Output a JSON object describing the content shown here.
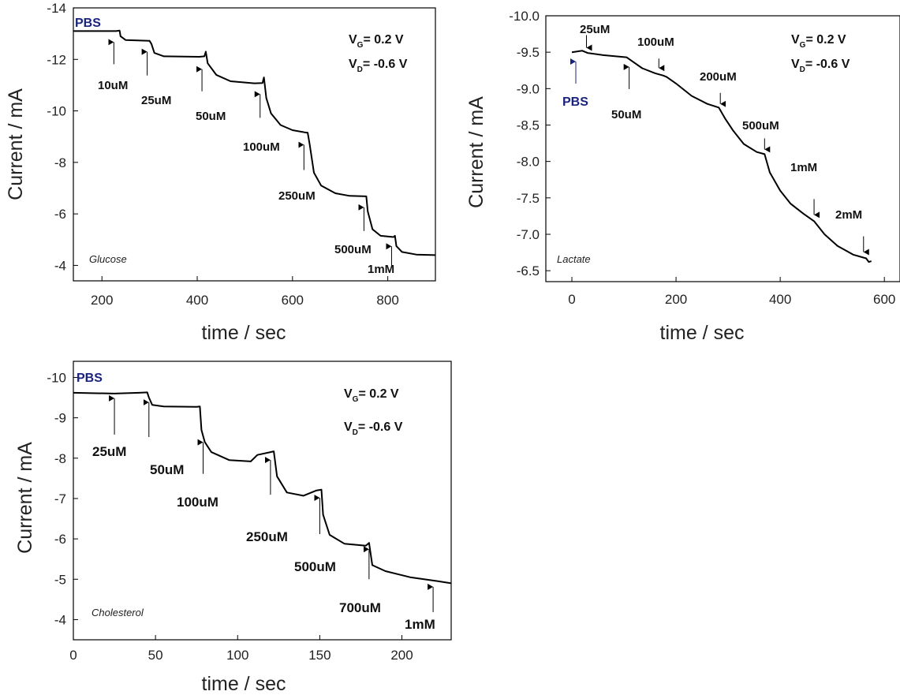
{
  "chart_data": [
    {
      "type": "line",
      "xlabel": "time / sec",
      "ylabel": "Current / mA",
      "xlim": [
        140,
        900
      ],
      "ylim": [
        -14,
        -3.4
      ],
      "y_reversed": true,
      "xticks": [
        200,
        400,
        600,
        800
      ],
      "yticks": [
        -14,
        -12,
        -10,
        -8,
        -6,
        -4
      ],
      "x_tick_labels": [
        "200",
        "400",
        "600",
        "800"
      ],
      "y_tick_labels": [
        "-14",
        "-12",
        "-10",
        "-8",
        "-6",
        "-4"
      ],
      "analyte": "Glucose",
      "baseline_label": "PBS",
      "vg_label": "V",
      "vg_sub": "G",
      "vg_value": "= 0.2 V",
      "vd_label": "V",
      "vd_sub": "D",
      "vd_value": "= -0.6 V",
      "grid": false,
      "series": [
        {
          "values": [
            [
              140,
              -13.1
            ],
            [
              230,
              -13.1
            ],
            [
              237,
              -13.12
            ],
            [
              239,
              -12.9
            ],
            [
              250,
              -12.75
            ],
            [
              300,
              -12.72
            ],
            [
              304,
              -12.6
            ],
            [
              310,
              -12.25
            ],
            [
              330,
              -12.12
            ],
            [
              405,
              -12.1
            ],
            [
              415,
              -12.12
            ],
            [
              418,
              -12.3
            ],
            [
              422,
              -11.85
            ],
            [
              440,
              -11.4
            ],
            [
              470,
              -11.15
            ],
            [
              520,
              -11.07
            ],
            [
              537,
              -11.08
            ],
            [
              540,
              -11.3
            ],
            [
              545,
              -10.5
            ],
            [
              555,
              -9.9
            ],
            [
              575,
              -9.45
            ],
            [
              600,
              -9.25
            ],
            [
              625,
              -9.17
            ],
            [
              632,
              -9.15
            ],
            [
              636,
              -8.7
            ],
            [
              645,
              -7.6
            ],
            [
              660,
              -7.1
            ],
            [
              690,
              -6.8
            ],
            [
              720,
              -6.7
            ],
            [
              755,
              -6.68
            ],
            [
              758,
              -6.1
            ],
            [
              768,
              -5.4
            ],
            [
              785,
              -5.15
            ],
            [
              812,
              -5.1
            ],
            [
              815,
              -5.15
            ],
            [
              818,
              -4.75
            ],
            [
              830,
              -4.52
            ],
            [
              860,
              -4.42
            ],
            [
              900,
              -4.4
            ]
          ]
        }
      ],
      "annotations": [
        {
          "label": "10uM",
          "x": 225
        },
        {
          "label": "25uM",
          "x": 295
        },
        {
          "label": "50uM",
          "x": 410
        },
        {
          "label": "100uM",
          "x": 532
        },
        {
          "label": "250uM",
          "x": 624
        },
        {
          "label": "500uM",
          "x": 750
        },
        {
          "label": "1mM",
          "x": 808
        }
      ]
    },
    {
      "type": "line",
      "xlabel": "time / sec",
      "ylabel": "Current / mA",
      "xlim": [
        -50,
        630
      ],
      "ylim": [
        -10,
        -6.35
      ],
      "y_reversed": true,
      "xticks": [
        0,
        200,
        400,
        600
      ],
      "yticks": [
        -10.0,
        -9.5,
        -9.0,
        -8.5,
        -8.0,
        -7.5,
        -7.0,
        -6.5
      ],
      "x_tick_labels": [
        "0",
        "200",
        "400",
        "600"
      ],
      "y_tick_labels": [
        "-10.0",
        "-9.5",
        "-9.0",
        "-8.5",
        "-8.0",
        "-7.5",
        "-7.0",
        "-6.5"
      ],
      "analyte": "Lactate",
      "baseline_label": "PBS",
      "vg_label": "V",
      "vg_sub": "G",
      "vg_value": "= 0.2 V",
      "vd_label": "V",
      "vd_sub": "D",
      "vd_value": "= -0.6 V",
      "grid": false,
      "series": [
        {
          "values": [
            [
              0,
              -9.5
            ],
            [
              20,
              -9.52
            ],
            [
              30,
              -9.49
            ],
            [
              60,
              -9.46
            ],
            [
              105,
              -9.43
            ],
            [
              115,
              -9.38
            ],
            [
              135,
              -9.28
            ],
            [
              160,
              -9.21
            ],
            [
              175,
              -9.18
            ],
            [
              182,
              -9.16
            ],
            [
              200,
              -9.07
            ],
            [
              230,
              -8.9
            ],
            [
              260,
              -8.79
            ],
            [
              282,
              -8.74
            ],
            [
              295,
              -8.58
            ],
            [
              310,
              -8.42
            ],
            [
              330,
              -8.24
            ],
            [
              355,
              -8.13
            ],
            [
              370,
              -8.1
            ],
            [
              380,
              -7.85
            ],
            [
              400,
              -7.6
            ],
            [
              420,
              -7.42
            ],
            [
              445,
              -7.28
            ],
            [
              465,
              -7.18
            ],
            [
              485,
              -7.0
            ],
            [
              510,
              -6.84
            ],
            [
              540,
              -6.72
            ],
            [
              565,
              -6.67
            ],
            [
              570,
              -6.62
            ],
            [
              575,
              -6.63
            ]
          ]
        }
      ],
      "annotations": [
        {
          "label": "25uM",
          "x": 28
        },
        {
          "label": "50uM",
          "x": 110
        },
        {
          "label": "100uM",
          "x": 167
        },
        {
          "label": "200uM",
          "x": 285
        },
        {
          "label": "500uM",
          "x": 370
        },
        {
          "label": "1mM",
          "x": 465
        },
        {
          "label": "2mM",
          "x": 560
        }
      ]
    },
    {
      "type": "line",
      "xlabel": "time / sec",
      "ylabel": "Current / mA",
      "xlim": [
        0,
        230
      ],
      "ylim": [
        -10.4,
        -3.5
      ],
      "y_reversed": true,
      "xticks": [
        0,
        50,
        100,
        150,
        200
      ],
      "yticks": [
        -10,
        -9,
        -8,
        -7,
        -6,
        -5,
        -4
      ],
      "x_tick_labels": [
        "0",
        "50",
        "100",
        "150",
        "200"
      ],
      "y_tick_labels": [
        "-10",
        "-9",
        "-8",
        "-7",
        "-6",
        "-5",
        "-4"
      ],
      "analyte": "Cholesterol",
      "baseline_label": "PBS",
      "vg_label": "V",
      "vg_sub": "G",
      "vg_value": "= 0.2 V",
      "vd_label": "V",
      "vd_sub": "D",
      "vd_value": "= -0.6 V",
      "grid": false,
      "series": [
        {
          "values": [
            [
              0,
              -9.62
            ],
            [
              25,
              -9.6
            ],
            [
              40,
              -9.62
            ],
            [
              45,
              -9.63
            ],
            [
              46,
              -9.5
            ],
            [
              48,
              -9.32
            ],
            [
              55,
              -9.28
            ],
            [
              75,
              -9.27
            ],
            [
              77,
              -9.28
            ],
            [
              78,
              -8.7
            ],
            [
              80,
              -8.4
            ],
            [
              84,
              -8.15
            ],
            [
              95,
              -7.95
            ],
            [
              108,
              -7.92
            ],
            [
              112,
              -8.08
            ],
            [
              120,
              -8.15
            ],
            [
              122,
              -8.17
            ],
            [
              124,
              -7.55
            ],
            [
              130,
              -7.15
            ],
            [
              140,
              -7.07
            ],
            [
              148,
              -7.2
            ],
            [
              151,
              -7.22
            ],
            [
              152,
              -6.6
            ],
            [
              156,
              -6.1
            ],
            [
              165,
              -5.88
            ],
            [
              178,
              -5.83
            ],
            [
              180,
              -5.9
            ],
            [
              182,
              -5.35
            ],
            [
              190,
              -5.2
            ],
            [
              205,
              -5.05
            ],
            [
              222,
              -4.95
            ],
            [
              230,
              -4.9
            ]
          ]
        }
      ],
      "annotations": [
        {
          "label": "25uM",
          "x": 25
        },
        {
          "label": "50uM",
          "x": 46
        },
        {
          "label": "100uM",
          "x": 79
        },
        {
          "label": "250uM",
          "x": 120
        },
        {
          "label": "500uM",
          "x": 150
        },
        {
          "label": "700uM",
          "x": 180
        },
        {
          "label": "1mM",
          "x": 219
        }
      ]
    }
  ]
}
